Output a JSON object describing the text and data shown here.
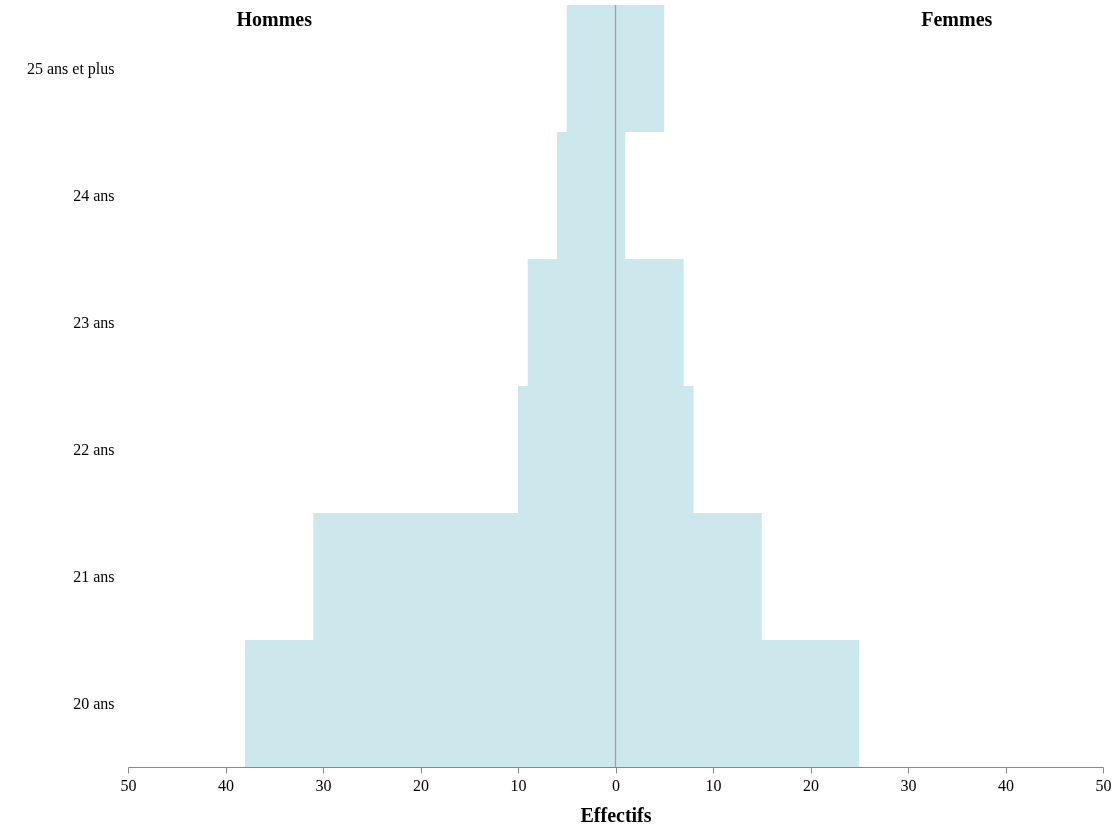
{
  "chart_data": {
    "type": "bar",
    "orientation": "horizontal",
    "xlabel": "Effectifs",
    "categories": [
      "25 ans et plus",
      "24 ans",
      "23 ans",
      "22 ans",
      "21 ans",
      "20 ans"
    ],
    "series": [
      {
        "name": "Hommes",
        "color": "#cce8ec",
        "values": [
          -5,
          -6,
          -9,
          -10,
          -31,
          -38
        ]
      },
      {
        "name": "Femmes",
        "color": "#cce8ec",
        "values": [
          5,
          1,
          7,
          8,
          15,
          25
        ]
      }
    ],
    "xlim": [
      -50,
      50
    ],
    "xticks": [
      {
        "value": -50,
        "label": "50"
      },
      {
        "value": -40,
        "label": "40"
      },
      {
        "value": -30,
        "label": "30"
      },
      {
        "value": -20,
        "label": "20"
      },
      {
        "value": -10,
        "label": "10"
      },
      0,
      10,
      20,
      30,
      40,
      50
    ],
    "ref_lines": [
      {
        "axis": "x",
        "value": 0,
        "color": "#a0a0a0"
      }
    ],
    "stacked": true,
    "grid": false
  }
}
